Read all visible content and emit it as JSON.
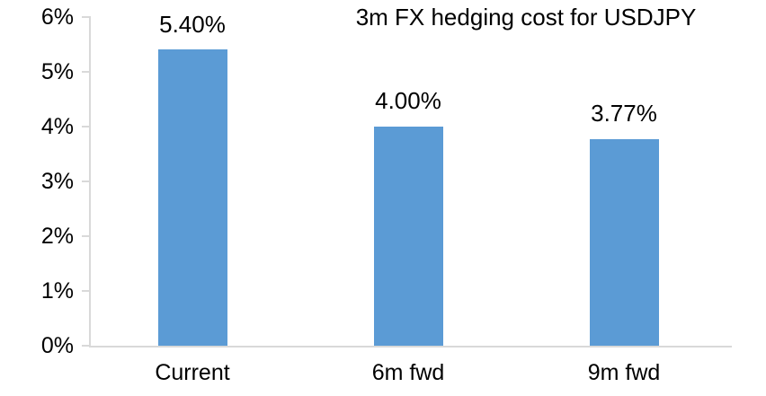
{
  "chart_data": {
    "type": "bar",
    "title": "3m FX hedging cost for USDJPY",
    "categories": [
      "Current",
      "6m fwd",
      "9m fwd"
    ],
    "values": [
      5.4,
      4.0,
      3.77
    ],
    "value_labels": [
      "5.40%",
      "4.00%",
      "3.77%"
    ],
    "xlabel": "",
    "ylabel": "",
    "ylim": [
      0,
      6
    ],
    "ytick_step": 1,
    "ytick_labels": [
      "0%",
      "1%",
      "2%",
      "3%",
      "4%",
      "5%",
      "6%"
    ],
    "grid": false,
    "legend": false,
    "colors": {
      "bar": "#5B9BD5",
      "axis": "#D9D9D9",
      "text": "#000000",
      "background": "#FFFFFF"
    }
  }
}
